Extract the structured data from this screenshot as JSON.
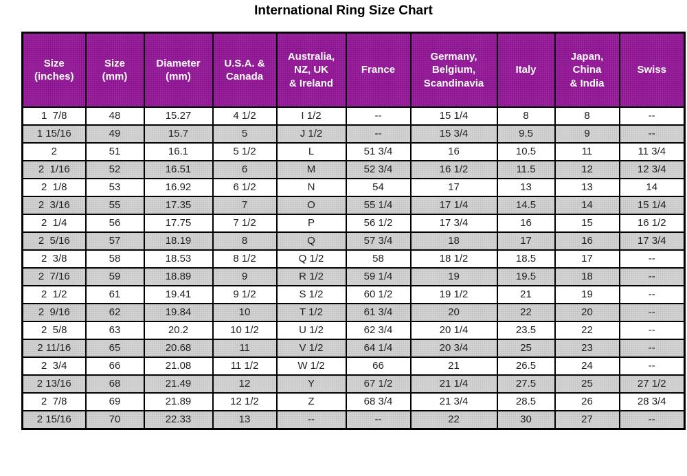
{
  "title": "International Ring Size Chart",
  "chart_data": {
    "type": "table",
    "title": "International Ring Size Chart",
    "columns": [
      {
        "key": "size_inches",
        "label": "Size\n(inches)"
      },
      {
        "key": "size_mm",
        "label": "Size\n(mm)"
      },
      {
        "key": "diameter_mm",
        "label": "Diameter\n(mm)"
      },
      {
        "key": "usa_canada",
        "label": "U.S.A. &\nCanada"
      },
      {
        "key": "australia_nz_uk_ireland",
        "label": "Australia,\nNZ, UK\n& Ireland"
      },
      {
        "key": "france",
        "label": "France"
      },
      {
        "key": "germany_belgium_scandinavia",
        "label": "Germany,\nBelgium,\nScandinavia"
      },
      {
        "key": "italy",
        "label": "Italy"
      },
      {
        "key": "japan_china_india",
        "label": "Japan,\nChina\n& India"
      },
      {
        "key": "swiss",
        "label": "Swiss"
      }
    ],
    "rows": [
      [
        "1  7/8",
        "48",
        "15.27",
        "4 1/2",
        "I 1/2",
        "--",
        "15 1/4",
        "8",
        "8",
        "--"
      ],
      [
        "1 15/16",
        "49",
        "15.7",
        "5",
        "J 1/2",
        "--",
        "15 3/4",
        "9.5",
        "9",
        "--"
      ],
      [
        "2",
        "51",
        "16.1",
        "5 1/2",
        "L",
        "51 3/4",
        "16",
        "10.5",
        "11",
        "11 3/4"
      ],
      [
        "2  1/16",
        "52",
        "16.51",
        "6",
        "M",
        "52 3/4",
        "16 1/2",
        "11.5",
        "12",
        "12 3/4"
      ],
      [
        "2  1/8",
        "53",
        "16.92",
        "6 1/2",
        "N",
        "54",
        "17",
        "13",
        "13",
        "14"
      ],
      [
        "2  3/16",
        "55",
        "17.35",
        "7",
        "O",
        "55 1/4",
        "17 1/4",
        "14.5",
        "14",
        "15 1/4"
      ],
      [
        "2  1/4",
        "56",
        "17.75",
        "7 1/2",
        "P",
        "56 1/2",
        "17 3/4",
        "16",
        "15",
        "16 1/2"
      ],
      [
        "2  5/16",
        "57",
        "18.19",
        "8",
        "Q",
        "57 3/4",
        "18",
        "17",
        "16",
        "17 3/4"
      ],
      [
        "2  3/8",
        "58",
        "18.53",
        "8 1/2",
        "Q 1/2",
        "58",
        "18 1/2",
        "18.5",
        "17",
        "--"
      ],
      [
        "2  7/16",
        "59",
        "18.89",
        "9",
        "R 1/2",
        "59 1/4",
        "19",
        "19.5",
        "18",
        "--"
      ],
      [
        "2  1/2",
        "61",
        "19.41",
        "9 1/2",
        "S 1/2",
        "60 1/2",
        "19 1/2",
        "21",
        "19",
        "--"
      ],
      [
        "2  9/16",
        "62",
        "19.84",
        "10",
        "T 1/2",
        "61 3/4",
        "20",
        "22",
        "20",
        "--"
      ],
      [
        "2  5/8",
        "63",
        "20.2",
        "10 1/2",
        "U 1/2",
        "62 3/4",
        "20 1/4",
        "23.5",
        "22",
        "--"
      ],
      [
        "2 11/16",
        "65",
        "20.68",
        "11",
        "V 1/2",
        "64 1/4",
        "20 3/4",
        "25",
        "23",
        "--"
      ],
      [
        "2  3/4",
        "66",
        "21.08",
        "11 1/2",
        "W 1/2",
        "66",
        "21",
        "26.5",
        "24",
        "--"
      ],
      [
        "2 13/16",
        "68",
        "21.49",
        "12",
        "Y",
        "67 1/2",
        "21 1/4",
        "27.5",
        "25",
        "27 1/2"
      ],
      [
        "2  7/8",
        "69",
        "21.89",
        "12 1/2",
        "Z",
        "68 3/4",
        "21 3/4",
        "28.5",
        "26",
        "28 3/4"
      ],
      [
        "2 15/16",
        "70",
        "22.33",
        "13",
        "--",
        "--",
        "22",
        "30",
        "27",
        "--"
      ]
    ],
    "layout": {
      "legend": "none",
      "grid": "black cell borders",
      "row_striping": "alternate gray shading on rows 2, 4, 6, ... (1-indexed)"
    }
  },
  "colors": {
    "page_bg": "#ffffff",
    "title_text": "#000000",
    "header_bg": "#8c1590",
    "header_dot": "#a02ba4",
    "header_text": "#ffffff",
    "row_alt_bg": "#d4d4d4",
    "row_alt_dot": "#c0c0c0",
    "cell_text": "#212121",
    "border": "#000000"
  }
}
